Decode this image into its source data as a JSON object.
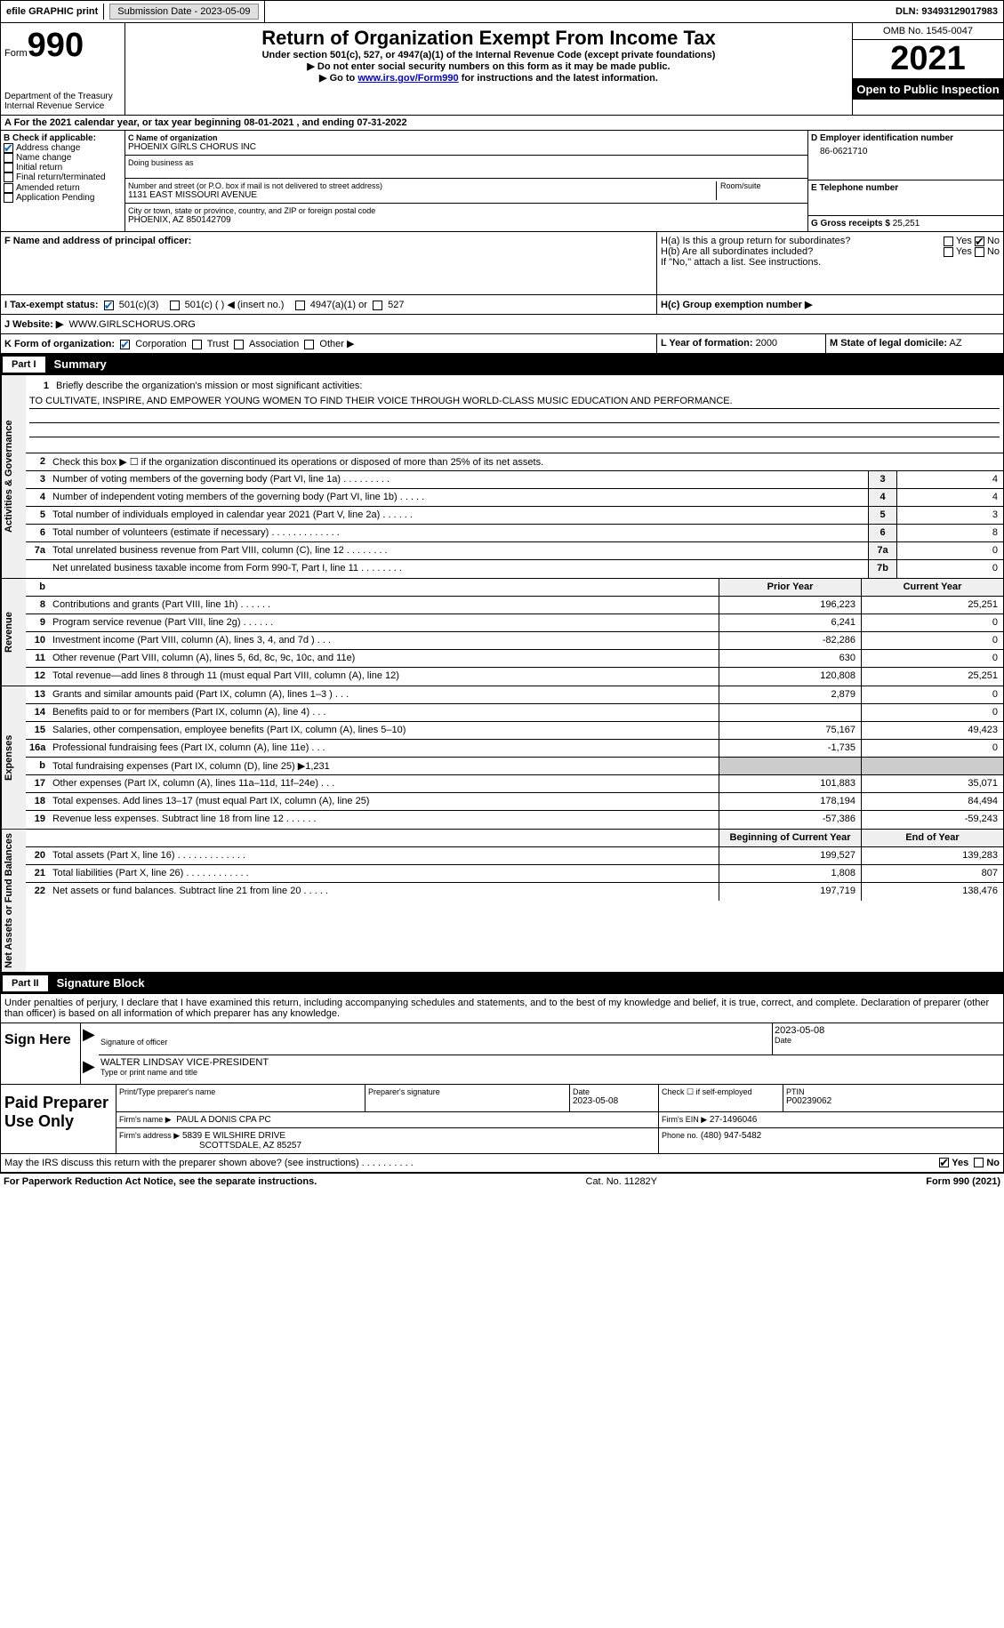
{
  "top": {
    "efile": "efile GRAPHIC print",
    "submission_label": "Submission Date - 2023-05-09",
    "dln_label": "DLN: 93493129017983"
  },
  "header": {
    "form_word": "Form",
    "form_num": "990",
    "dept": "Department of the Treasury Internal Revenue Service",
    "main_title": "Return of Organization Exempt From Income Tax",
    "subtitle": "Under section 501(c), 527, or 4947(a)(1) of the Internal Revenue Code (except private foundations)",
    "note1": "▶ Do not enter social security numbers on this form as it may be made public.",
    "note2_pre": "▶ Go to ",
    "note2_link": "www.irs.gov/Form990",
    "note2_post": " for instructions and the latest information.",
    "omb": "OMB No. 1545-0047",
    "year": "2021",
    "inspect": "Open to Public Inspection"
  },
  "rowA": "A For the 2021 calendar year, or tax year beginning 08-01-2021    , and ending 07-31-2022",
  "boxB": {
    "label": "B Check if applicable:",
    "i1": "Address change",
    "i2": "Name change",
    "i3": "Initial return",
    "i4": "Final return/terminated",
    "i5": "Amended return",
    "i6": "Application Pending"
  },
  "boxC": {
    "name_lbl": "C Name of organization",
    "name": "PHOENIX GIRLS CHORUS INC",
    "dba_lbl": "Doing business as",
    "street_lbl": "Number and street (or P.O. box if mail is not delivered to street address)",
    "room_lbl": "Room/suite",
    "street": "1131 EAST MISSOURI AVENUE",
    "city_lbl": "City or town, state or province, country, and ZIP or foreign postal code",
    "city": "PHOENIX, AZ  850142709"
  },
  "boxD": {
    "lbl": "D Employer identification number",
    "val": "86-0621710"
  },
  "boxE": {
    "lbl": "E Telephone number",
    "val": ""
  },
  "boxG": {
    "lbl": "G Gross receipts $",
    "val": "25,251"
  },
  "boxF": {
    "lbl": "F  Name and address of principal officer:"
  },
  "boxH": {
    "a": "H(a)  Is this a group return for subordinates?",
    "b": "H(b)  Are all subordinates included?",
    "note": "If \"No,\" attach a list. See instructions.",
    "c": "H(c)  Group exemption number ▶",
    "yes": "Yes",
    "no": "No"
  },
  "rowI": {
    "lbl": "I    Tax-exempt status:",
    "o1": "501(c)(3)",
    "o2": "501(c) (  ) ◀ (insert no.)",
    "o3": "4947(a)(1) or",
    "o4": "527"
  },
  "rowJ": {
    "lbl": "J   Website: ▶",
    "val": "WWW.GIRLSCHORUS.ORG"
  },
  "rowK": {
    "lbl": "K Form of organization:",
    "o1": "Corporation",
    "o2": "Trust",
    "o3": "Association",
    "o4": "Other ▶",
    "L_lbl": "L Year of formation:",
    "L_val": "2000",
    "M_lbl": "M State of legal domicile:",
    "M_val": "AZ"
  },
  "part1": {
    "num": "Part I",
    "title": "Summary"
  },
  "vtab1": "Activities & Governance",
  "vtab2": "Revenue",
  "vtab3": "Expenses",
  "vtab4": "Net Assets or Fund Balances",
  "mission": {
    "num": "1",
    "lbl": "Briefly describe the organization's mission or most significant activities:",
    "text": "TO CULTIVATE, INSPIRE, AND EMPOWER YOUNG WOMEN TO FIND THEIR VOICE THROUGH WORLD-CLASS MUSIC EDUCATION AND PERFORMANCE."
  },
  "lines_gov": [
    {
      "n": "2",
      "t": "Check this box ▶ ☐  if the organization discontinued its operations or disposed of more than 25% of its net assets."
    },
    {
      "n": "3",
      "t": "Number of voting members of the governing body (Part VI, line 1a)  .   .   .   .   .   .   .   .   .",
      "b": "3",
      "v": "4"
    },
    {
      "n": "4",
      "t": "Number of independent voting members of the governing body (Part VI, line 1b)   .   .   .   .   .",
      "b": "4",
      "v": "4"
    },
    {
      "n": "5",
      "t": "Total number of individuals employed in calendar year 2021 (Part V, line 2a)   .   .   .   .   .   .",
      "b": "5",
      "v": "3"
    },
    {
      "n": "6",
      "t": "Total number of volunteers (estimate if necessary)    .   .   .   .   .   .   .   .   .   .   .   .   .",
      "b": "6",
      "v": "8"
    },
    {
      "n": "7a",
      "t": "Total unrelated business revenue from Part VIII, column (C), line 12   .   .   .   .   .   .   .   .",
      "b": "7a",
      "v": "0"
    },
    {
      "n": "",
      "t": "Net unrelated business taxable income from Form 990-T, Part I, line 11  .   .   .   .   .   .   .   .",
      "b": "7b",
      "v": "0"
    }
  ],
  "col_hdr": {
    "b": "b",
    "prior": "Prior Year",
    "curr": "Current Year"
  },
  "lines_rev": [
    {
      "n": "8",
      "t": "Contributions and grants (Part VIII, line 1h)   .   .   .   .   .   .",
      "p": "196,223",
      "c": "25,251"
    },
    {
      "n": "9",
      "t": "Program service revenue (Part VIII, line 2g)   .   .   .   .   .   .",
      "p": "6,241",
      "c": "0"
    },
    {
      "n": "10",
      "t": "Investment income (Part VIII, column (A), lines 3, 4, and 7d )   .   .   .",
      "p": "-82,286",
      "c": "0"
    },
    {
      "n": "11",
      "t": "Other revenue (Part VIII, column (A), lines 5, 6d, 8c, 9c, 10c, and 11e)",
      "p": "630",
      "c": "0"
    },
    {
      "n": "12",
      "t": "Total revenue—add lines 8 through 11 (must equal Part VIII, column (A), line 12)",
      "p": "120,808",
      "c": "25,251"
    }
  ],
  "lines_exp": [
    {
      "n": "13",
      "t": "Grants and similar amounts paid (Part IX, column (A), lines 1–3 )   .   .   .",
      "p": "2,879",
      "c": "0"
    },
    {
      "n": "14",
      "t": "Benefits paid to or for members (Part IX, column (A), line 4)   .   .   .",
      "p": "",
      "c": "0"
    },
    {
      "n": "15",
      "t": "Salaries, other compensation, employee benefits (Part IX, column (A), lines 5–10)",
      "p": "75,167",
      "c": "49,423"
    },
    {
      "n": "16a",
      "t": "Professional fundraising fees (Part IX, column (A), line 11e)   .   .   .",
      "p": "-1,735",
      "c": "0"
    },
    {
      "n": "b",
      "t": "Total fundraising expenses (Part IX, column (D), line 25) ▶1,231",
      "p": "GREY",
      "c": "GREY"
    },
    {
      "n": "17",
      "t": "Other expenses (Part IX, column (A), lines 11a–11d, 11f–24e)   .   .   .",
      "p": "101,883",
      "c": "35,071"
    },
    {
      "n": "18",
      "t": "Total expenses. Add lines 13–17 (must equal Part IX, column (A), line 25)",
      "p": "178,194",
      "c": "84,494"
    },
    {
      "n": "19",
      "t": "Revenue less expenses. Subtract line 18 from line 12  .   .   .   .   .   .",
      "p": "-57,386",
      "c": "-59,243"
    }
  ],
  "col_hdr2": {
    "prior": "Beginning of Current Year",
    "curr": "End of Year"
  },
  "lines_net": [
    {
      "n": "20",
      "t": "Total assets (Part X, line 16)  .   .   .   .   .   .   .   .   .   .   .   .   .",
      "p": "199,527",
      "c": "139,283"
    },
    {
      "n": "21",
      "t": "Total liabilities (Part X, line 26)   .   .   .   .   .   .   .   .   .   .   .   .",
      "p": "1,808",
      "c": "807"
    },
    {
      "n": "22",
      "t": "Net assets or fund balances. Subtract line 21 from line 20  .   .   .   .   .",
      "p": "197,719",
      "c": "138,476"
    }
  ],
  "part2": {
    "num": "Part II",
    "title": "Signature Block"
  },
  "sig": {
    "decl": "Under penalties of perjury, I declare that I have examined this return, including accompanying schedules and statements, and to the best of my knowledge and belief, it is true, correct, and complete. Declaration of preparer (other than officer) is based on all information of which preparer has any knowledge.",
    "sign_here": "Sign Here",
    "sig_officer_lbl": "Signature of officer",
    "sig_date": "2023-05-08",
    "sig_date_lbl": "Date",
    "name_title": "WALTER LINDSAY VICE-PRESIDENT",
    "name_title_lbl": "Type or print name and title"
  },
  "prep": {
    "label": "Paid Preparer Use Only",
    "name_lbl": "Print/Type preparer's name",
    "sig_lbl": "Preparer's signature",
    "date_lbl": "Date",
    "date": "2023-05-08",
    "check_lbl": "Check ☐ if self-employed",
    "ptin_lbl": "PTIN",
    "ptin": "P00239062",
    "firm_name_lbl": "Firm's name    ▶",
    "firm_name": "PAUL A DONIS CPA PC",
    "firm_ein_lbl": "Firm's EIN ▶",
    "firm_ein": "27-1496046",
    "firm_addr_lbl": "Firm's address ▶",
    "firm_addr1": "5839 E WILSHIRE DRIVE",
    "firm_addr2": "SCOTTSDALE, AZ  85257",
    "phone_lbl": "Phone no.",
    "phone": "(480) 947-5482"
  },
  "discuss": {
    "text": "May the IRS discuss this return with the preparer shown above? (see instructions)   .   .   .   .   .   .   .   .   .   .",
    "yes": "Yes",
    "no": "No"
  },
  "foot": {
    "left": "For Paperwork Reduction Act Notice, see the separate instructions.",
    "mid": "Cat. No. 11282Y",
    "right": "Form 990 (2021)"
  }
}
